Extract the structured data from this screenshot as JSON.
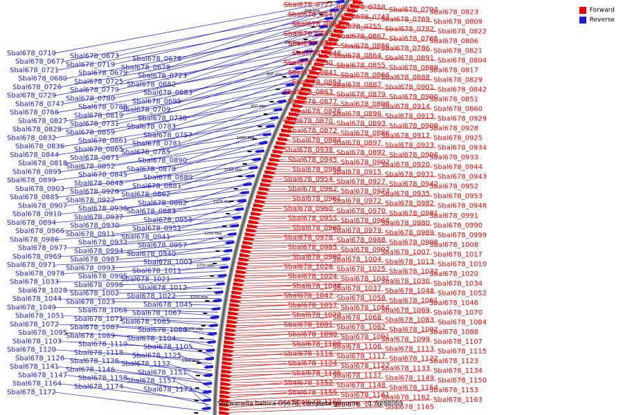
{
  "legend": {
    "forward_label": "Forward",
    "reverse_label": "Reverse",
    "forward_color": "#ee0000",
    "reverse_color": "#1a1ad8"
  },
  "caption": "Shewanella baltica OS678, complete genome. - 0..5288069",
  "ticks": [
    "800 kbp",
    "850 kbp",
    "900 kbp",
    "950 kbp",
    "1000 kbp",
    "1050 kbp",
    "1100 kbp",
    "1150 kbp",
    "1200 kbp",
    "1250 kbp",
    "1300 kbp",
    "1350 kbp"
  ],
  "left_labels": [
    "Sbal678_0710",
    "Sbal678_0673",
    "Sbal678_0676",
    "Sbal678_0677",
    "Sbal678_0719",
    "Sbal678_0678",
    "Sbal678_0721",
    "Sbal678_0679",
    "Sbal678_0723",
    "Sbal678_0680",
    "Sbal678_0725",
    "Sbal678_0682",
    "Sbal678_0726",
    "Sbal678_0779",
    "Sbal678_0683",
    "Sbal678_0729",
    "Sbal678_0780",
    "Sbal678_0695",
    "Sbal678_0747",
    "Sbal678_0788",
    "Sbal678_0709",
    "Sbal678_0766",
    "Sbal678_0819",
    "Sbal678_0730",
    "Sbal678_0827",
    "Sbal678_0731",
    "Sbal678_0783",
    "Sbal678_0828",
    "Sbal678_0859",
    "Sbal678_0757",
    "Sbal678_0832",
    "Sbal678_0861",
    "Sbal678_0781",
    "Sbal678_0836",
    "Sbal678_0865",
    "Sbal678_0785",
    "Sbal678_0844",
    "Sbal678_0871",
    "Sbal678_0890",
    "Sbal678_0818",
    "Sbal678_0852",
    "Sbal678_0878",
    "Sbal678_0895",
    "Sbal678_0845",
    "Sbal678_0880",
    "Sbal678_0899",
    "Sbal678_0848",
    "Sbal678_0881",
    "Sbal678_0903",
    "Sbal678_0926",
    "Sbal678_0862",
    "Sbal678_0885",
    "Sbal678_0922",
    "Sbal678_0882",
    "Sbal678_0907",
    "Sbal678_0936",
    "Sbal678_0883",
    "Sbal678_0910",
    "Sbal678_0937",
    "Sbal678_0956",
    "Sbal678_0894",
    "Sbal678_0930",
    "Sbal678_0951",
    "Sbal678_0966",
    "Sbal678_0911",
    "Sbal678_0941",
    "Sbal678_0986",
    "Sbal678_0932",
    "Sbal678_0957",
    "Sbal678_0977",
    "Sbal678_0994",
    "Sbal678_0940",
    "Sbal678_0969",
    "Sbal678_0987",
    "Sbal678_1003",
    "Sbal678_0971",
    "Sbal678_0993",
    "Sbal678_1011",
    "Sbal678_0978",
    "Sbal678_0995",
    "Sbal678_1021",
    "Sbal678_1033",
    "Sbal678_0996",
    "Sbal678_1012",
    "Sbal678_1028",
    "Sbal678_1002",
    "Sbal678_1022",
    "Sbal678_1044",
    "Sbal678_1023",
    "Sbal678_1045",
    "Sbal678_1049",
    "Sbal678_1066",
    "Sbal678_1067",
    "Sbal678_1051",
    "Sbal678_1071",
    "Sbal678_1085",
    "Sbal678_1072",
    "Sbal678_1087",
    "Sbal678_1086",
    "Sbal678_1095",
    "Sbal678_1089",
    "Sbal678_1104",
    "Sbal678_1103",
    "Sbal678_1110",
    "Sbal678_1105",
    "Sbal678_1120",
    "Sbal678_1118",
    "Sbal678_1125",
    "Sbal678_1126",
    "Sbal678_1136",
    "Sbal678_1132",
    "Sbal678_1141",
    "Sbal678_1146",
    "Sbal678_1151",
    "Sbal678_1147",
    "Sbal678_1158",
    "Sbal678_1157",
    "Sbal678_1164",
    "Sbal678_1174",
    "Sbal678_1173",
    "Sbal678_1172"
  ],
  "right_labels": [
    "Sbal678_0727",
    "Sbal678_0758",
    "Sbal678_0793",
    "Sbal678_0823",
    "Sbal678_0847",
    "Sbal678_0743",
    "Sbal678_0769",
    "Sbal678_0809",
    "Sbal678_0834",
    "Sbal678_0755",
    "Sbal678_0792",
    "Sbal678_0822",
    "Sbal678_0849",
    "Sbal678_0867",
    "Sbal678_0765",
    "Sbal678_0806",
    "Sbal678_0838",
    "Sbal678_0856",
    "Sbal678_0786",
    "Sbal678_0821",
    "Sbal678_0846",
    "Sbal678_0864",
    "Sbal678_0891",
    "Sbal678_0804",
    "Sbal678_0830",
    "Sbal678_0855",
    "Sbal678_0889",
    "Sbal678_0817",
    "Sbal678_0841",
    "Sbal678_0866",
    "Sbal678_0888",
    "Sbal678_0829",
    "Sbal678_0853",
    "Sbal678_0887",
    "Sbal678_0901",
    "Sbal678_0842",
    "Sbal678_0863",
    "Sbal678_0879",
    "Sbal678_0900",
    "Sbal678_0851",
    "Sbal678_0877",
    "Sbal678_0898",
    "Sbal678_0914",
    "Sbal678_0860",
    "Sbal678_0876",
    "Sbal678_0896",
    "Sbal678_0913",
    "Sbal678_0929",
    "Sbal678_0870",
    "Sbal678_0893",
    "Sbal678_0909",
    "Sbal678_0928",
    "Sbal678_0872",
    "Sbal678_0886",
    "Sbal678_0912",
    "Sbal678_0925",
    "Sbal678_0884",
    "Sbal678_0897",
    "Sbal678_0923",
    "Sbal678_0934",
    "Sbal678_0938",
    "Sbal678_0892",
    "Sbal678_0906",
    "Sbal678_0933",
    "Sbal678_0945",
    "Sbal678_0902",
    "Sbal678_0920",
    "Sbal678_0944",
    "Sbal678_0958",
    "Sbal678_0915",
    "Sbal678_0931",
    "Sbal678_0943",
    "Sbal678_0954",
    "Sbal678_0927",
    "Sbal678_0942",
    "Sbal678_0952",
    "Sbal678_0962",
    "Sbal678_0973",
    "Sbal678_0935",
    "Sbal678_0953",
    "Sbal678_0961",
    "Sbal678_0972",
    "Sbal678_0982",
    "Sbal678_0948",
    "Sbal678_0960",
    "Sbal678_0970",
    "Sbal678_0981",
    "Sbal678_0991",
    "Sbal678_0955",
    "Sbal678_0968",
    "Sbal678_0980",
    "Sbal678_0990",
    "Sbal678_0965",
    "Sbal678_0979",
    "Sbal678_0989",
    "Sbal678_0999",
    "Sbal678_0976",
    "Sbal678_0988",
    "Sbal678_0998",
    "Sbal678_1008",
    "Sbal678_0985",
    "Sbal678_0997",
    "Sbal678_1007",
    "Sbal678_1017",
    "Sbal678_0992",
    "Sbal678_1004",
    "Sbal678_1013",
    "Sbal678_1010",
    "Sbal678_1026",
    "Sbal678_1025",
    "Sbal678_1032",
    "Sbal678_1020",
    "Sbal678_1024",
    "Sbal678_1031",
    "Sbal678_1030",
    "Sbal678_1034",
    "Sbal678_1038",
    "Sbal678_1037",
    "Sbal678_1048",
    "Sbal678_1052",
    "Sbal678_1047",
    "Sbal678_1058",
    "Sbal678_1061",
    "Sbal678_1046",
    "Sbal678_1057",
    "Sbal678_1056",
    "Sbal678_1069",
    "Sbal678_1070",
    "Sbal678_1073",
    "Sbal678_1068",
    "Sbal678_1083",
    "Sbal678_1084",
    "Sbal678_1081",
    "Sbal678_1082",
    "Sbal678_1092",
    "Sbal678_1088",
    "Sbal678_1090",
    "Sbal678_1091",
    "Sbal678_1099",
    "Sbal678_1107",
    "Sbal678_1108",
    "Sbal678_1106",
    "Sbal678_1113",
    "Sbal678_1115",
    "Sbal678_1116",
    "Sbal678_1117",
    "Sbal678_1122",
    "Sbal678_1123",
    "Sbal678_1124",
    "Sbal678_1127",
    "Sbal678_1133",
    "Sbal678_1134",
    "Sbal678_1135",
    "Sbal678_1137",
    "Sbal678_1149",
    "Sbal678_1150",
    "Sbal678_1152",
    "Sbal678_1148",
    "Sbal678_1154",
    "Sbal678_1153",
    "Sbal678_1155",
    "Sbal678_1161",
    "Sbal678_1162",
    "Sbal678_1163",
    "Sbal678_1169",
    "Sbal678_1170",
    "Sbal678_1165"
  ]
}
